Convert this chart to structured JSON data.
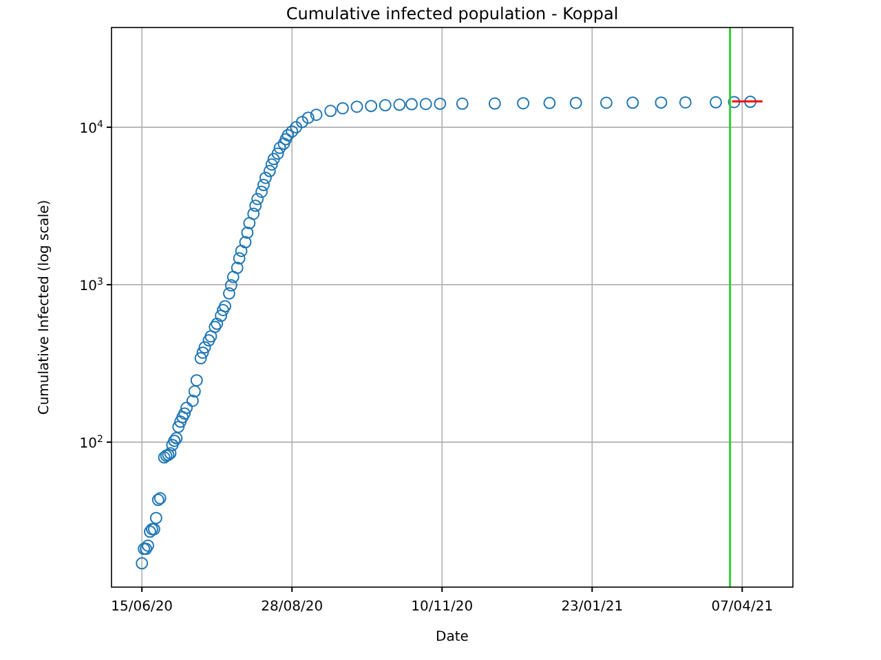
{
  "chart_data": {
    "type": "scatter",
    "title": "Cumulative infected population - Koppal",
    "xlabel": "Date",
    "ylabel": "Cumulative Infected (log scale)",
    "log": "y",
    "grid": true,
    "xlim": [
      "2020-05-31",
      "2021-05-02"
    ],
    "xticks": [
      {
        "value": "2020-06-15",
        "label": "15/06/20"
      },
      {
        "value": "2020-08-28",
        "label": "28/08/20"
      },
      {
        "value": "2020-11-10",
        "label": "10/11/20"
      },
      {
        "value": "2021-01-23",
        "label": "23/01/21"
      },
      {
        "value": "2021-04-07",
        "label": "07/04/21"
      }
    ],
    "ylim": [
      12,
      43000
    ],
    "yticks": [
      {
        "value": 100,
        "label": "10$^{2}$"
      },
      {
        "value": 1000,
        "label": "10$^{3}$"
      },
      {
        "value": 10000,
        "label": "10$^{4}$"
      }
    ],
    "ref_lines": [
      {
        "axis": "x",
        "value": "2021-04-01",
        "color": "#33cc33"
      }
    ],
    "series": [
      {
        "marker": "circle",
        "color": "#1f77b4",
        "x": [
          "2020-06-15",
          "2020-06-16",
          "2020-06-17",
          "2020-06-18",
          "2020-06-19",
          "2020-06-20",
          "2020-06-21",
          "2020-06-22",
          "2020-06-23",
          "2020-06-24",
          "2020-06-26",
          "2020-06-27",
          "2020-06-28",
          "2020-06-29",
          "2020-06-30",
          "2020-07-01",
          "2020-07-02",
          "2020-07-03",
          "2020-07-04",
          "2020-07-05",
          "2020-07-06",
          "2020-07-07",
          "2020-07-10",
          "2020-07-11",
          "2020-07-12",
          "2020-07-14",
          "2020-07-15",
          "2020-07-16",
          "2020-07-18",
          "2020-07-19",
          "2020-07-21",
          "2020-07-22",
          "2020-07-24",
          "2020-07-25",
          "2020-07-26",
          "2020-07-28",
          "2020-07-29",
          "2020-07-30",
          "2020-08-01",
          "2020-08-02",
          "2020-08-03",
          "2020-08-05",
          "2020-08-06",
          "2020-08-07",
          "2020-08-09",
          "2020-08-10",
          "2020-08-11",
          "2020-08-13",
          "2020-08-14",
          "2020-08-15",
          "2020-08-17",
          "2020-08-18",
          "2020-08-19",
          "2020-08-21",
          "2020-08-22",
          "2020-08-24",
          "2020-08-25",
          "2020-08-26",
          "2020-08-28",
          "2020-08-30",
          "2020-09-02",
          "2020-09-05",
          "2020-09-09",
          "2020-09-16",
          "2020-09-22",
          "2020-09-29",
          "2020-10-06",
          "2020-10-13",
          "2020-10-20",
          "2020-10-26",
          "2020-11-02",
          "2020-11-09",
          "2020-11-20",
          "2020-12-06",
          "2020-12-20",
          "2021-01-02",
          "2021-01-15",
          "2021-01-30",
          "2021-02-12",
          "2021-02-26",
          "2021-03-10",
          "2021-03-25",
          "2021-04-03",
          "2021-04-11"
        ],
        "values": [
          17,
          21,
          21,
          22,
          27,
          28,
          28,
          33,
          43,
          44,
          80,
          82,
          83,
          85,
          96,
          102,
          106,
          125,
          135,
          144,
          152,
          165,
          183,
          210,
          247,
          341,
          370,
          400,
          443,
          470,
          540,
          565,
          635,
          690,
          730,
          880,
          990,
          1120,
          1280,
          1470,
          1640,
          1860,
          2140,
          2460,
          2820,
          3170,
          3500,
          3890,
          4300,
          4770,
          5270,
          5800,
          6280,
          6800,
          7400,
          7870,
          8400,
          8900,
          9400,
          10000,
          10800,
          11500,
          12000,
          12700,
          13200,
          13500,
          13650,
          13800,
          13900,
          14000,
          14050,
          14100,
          14120,
          14150,
          14200,
          14250,
          14270,
          14300,
          14320,
          14350,
          14380,
          14400,
          14450,
          14500
        ]
      },
      {
        "type": "line",
        "color": "#ff0000",
        "x": [
          "2021-04-02",
          "2021-04-17"
        ],
        "values": [
          14600,
          14600
        ]
      }
    ]
  }
}
